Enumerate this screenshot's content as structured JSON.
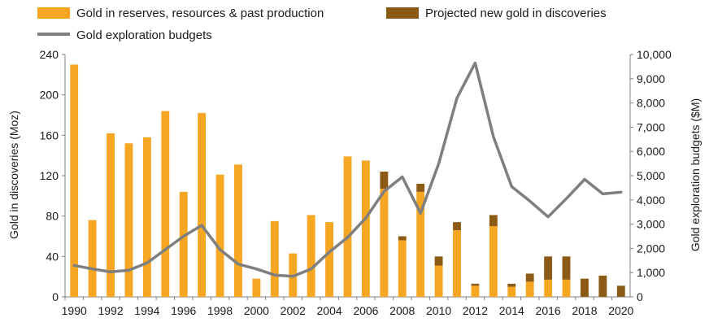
{
  "colors": {
    "gold": "#F5A623",
    "projected": "#8B5A14",
    "budget_line": "#7F7F7F",
    "axis": "#808080",
    "text": "#1a1a1a"
  },
  "chart_data": {
    "type": "bar",
    "title": "",
    "xlabel": "",
    "ylabel": "Gold in discoveries (Moz)",
    "y2label": "Gold exploration budgets ($M)",
    "ylim": [
      0,
      240
    ],
    "y2lim": [
      0,
      10000
    ],
    "grid": false,
    "legend_position": "top",
    "categories": [
      "1990",
      "1991",
      "1992",
      "1993",
      "1994",
      "1995",
      "1996",
      "1997",
      "1998",
      "1999",
      "2000",
      "2001",
      "2002",
      "2003",
      "2004",
      "2005",
      "2006",
      "2007",
      "2008",
      "2009",
      "2010",
      "2011",
      "2012",
      "2013",
      "2014",
      "2015",
      "2016",
      "2017",
      "2018",
      "2019",
      "2020"
    ],
    "x_tick_labels": [
      "1990",
      "1992",
      "1994",
      "1996",
      "1998",
      "2000",
      "2002",
      "2004",
      "2006",
      "2008",
      "2010",
      "2012",
      "2014",
      "2016",
      "2018",
      "2020"
    ],
    "y_tick_labels": [
      "0",
      "40",
      "80",
      "120",
      "160",
      "200",
      "240"
    ],
    "y2_tick_labels": [
      "0",
      "1,000",
      "2,000",
      "3,000",
      "4,000",
      "5,000",
      "6,000",
      "7,000",
      "8,000",
      "9,000",
      "10,000"
    ],
    "series": [
      {
        "name": "Gold in reserves, resources & past production",
        "kind": "bar",
        "axis": "left",
        "values": [
          230,
          76,
          162,
          152,
          158,
          184,
          104,
          182,
          121,
          131,
          18,
          75,
          43,
          81,
          74,
          139,
          135,
          107,
          56,
          104,
          31,
          66,
          11,
          70,
          10,
          15,
          17,
          17,
          0,
          0,
          0
        ]
      },
      {
        "name": "Projected new gold in discoveries",
        "kind": "bar",
        "axis": "left",
        "stacked_on": "Gold in reserves, resources & past production",
        "values": [
          0,
          0,
          0,
          0,
          0,
          0,
          0,
          0,
          0,
          0,
          0,
          0,
          0,
          0,
          0,
          0,
          0,
          17,
          4,
          8,
          9,
          8,
          2,
          11,
          3,
          8,
          23,
          23,
          18,
          21,
          11
        ]
      },
      {
        "name": "Gold exploration budgets",
        "kind": "line",
        "axis": "right",
        "values": [
          1300,
          1150,
          1030,
          1100,
          1400,
          1950,
          2500,
          2950,
          1950,
          1350,
          1150,
          900,
          850,
          1150,
          1850,
          2450,
          3250,
          4350,
          4950,
          3450,
          5500,
          8200,
          9650,
          6600,
          4550,
          3950,
          3300,
          4050,
          4850,
          4250,
          4320
        ]
      }
    ]
  }
}
